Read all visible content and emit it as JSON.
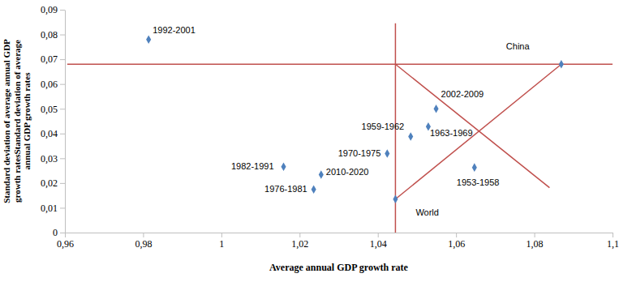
{
  "chart_data": {
    "type": "scatter",
    "x_label": "Average annual GDP growth rate",
    "y_label": "Standard deviation of average annual GDP growth ratesStandard deviation of average annual GDP growth rates",
    "xlim": [
      0.96,
      1.1
    ],
    "xticks": [
      {
        "value": 0.96,
        "label": "0,96"
      },
      {
        "value": 0.98,
        "label": "0,98"
      },
      1,
      {
        "value": 1.02,
        "label": "1,02"
      },
      {
        "value": 1.04,
        "label": "1,04"
      },
      {
        "value": 1.06,
        "label": "1,06"
      },
      {
        "value": 1.08,
        "label": "1,08"
      },
      {
        "value": 1.1,
        "label": "1,1"
      }
    ],
    "ylim": [
      0,
      0.09
    ],
    "yticks": [
      0,
      {
        "value": 0.01,
        "label": "0,01"
      },
      {
        "value": 0.02,
        "label": "0,02"
      },
      {
        "value": 0.03,
        "label": "0,03"
      },
      {
        "value": 0.04,
        "label": "0,04"
      },
      {
        "value": 0.05,
        "label": "0,05"
      },
      {
        "value": 0.06,
        "label": "0,06"
      },
      {
        "value": 0.07,
        "label": "0,07"
      },
      {
        "value": 0.08,
        "label": "0,08"
      },
      {
        "value": 0.09,
        "label": "0,09"
      }
    ],
    "series": [
      {
        "type": "scatter",
        "color": "#4f81bd",
        "marker": "diamond",
        "labels": [
          "1992-2001",
          "China",
          "2002-2009",
          "1959-1962",
          "1963-1969",
          "1970-1975",
          "1953-1958",
          "1982-1991",
          "2010-2020",
          "1976-1981",
          "World"
        ],
        "x": [
          0.9814,
          1.0869,
          1.0549,
          1.0484,
          1.0529,
          1.0424,
          1.0647,
          1.0159,
          1.0255,
          1.0236,
          1.0445
        ],
        "values": [
          0.078,
          0.068,
          0.05,
          0.0388,
          0.0428,
          0.0319,
          0.0263,
          0.0266,
          0.0234,
          0.0174,
          0.0135
        ]
      },
      {
        "type": "line",
        "color": "#c0504d",
        "x": [
          0.9606,
          1.1
        ],
        "values": [
          0.068,
          0.068
        ]
      },
      {
        "type": "line",
        "color": "#c0504d",
        "x": [
          1.0445,
          1.0445
        ],
        "values": [
          0,
          0.0845
        ]
      },
      {
        "type": "line",
        "color": "#c0504d",
        "x": [
          1.0445,
          1.0869
        ],
        "values": [
          0.0135,
          0.068
        ]
      },
      {
        "type": "line",
        "color": "#c0504d",
        "x": [
          1.0445,
          1.0839
        ],
        "values": [
          0.068,
          0.0181
        ]
      }
    ]
  }
}
